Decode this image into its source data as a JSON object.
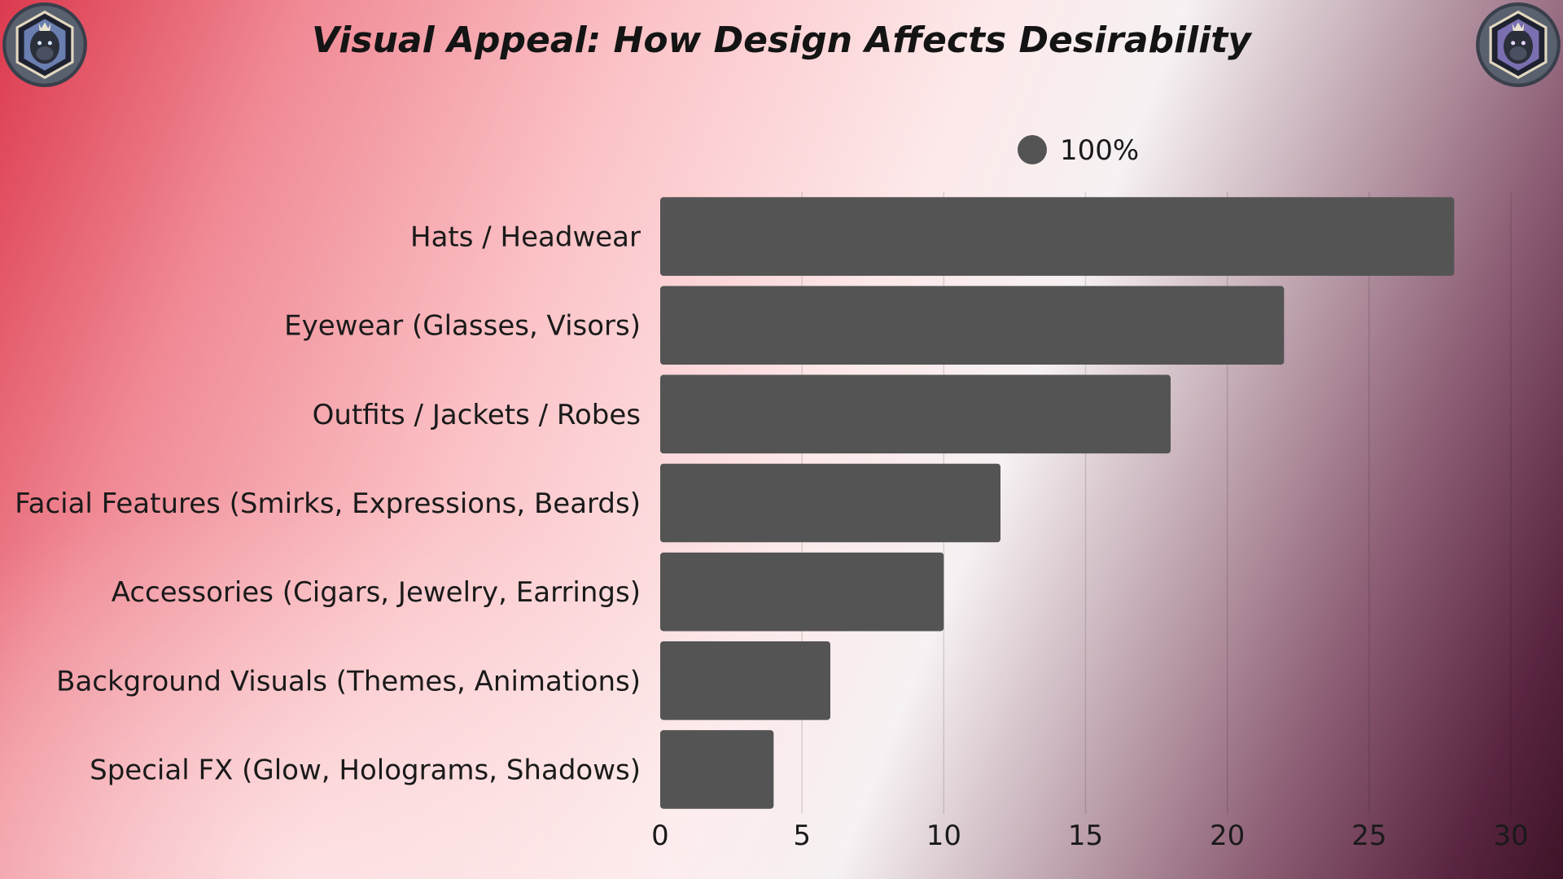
{
  "chart_data": {
    "type": "bar",
    "orientation": "horizontal",
    "title": "Visual Appeal: How Design Affects Desirability",
    "categories": [
      "Hats / Headwear",
      "Eyewear (Glasses, Visors)",
      "Outfits / Jackets / Robes",
      "Facial Features (Smirks, Expressions, Beards)",
      "Accessories (Cigars, Jewelry, Earrings)",
      "Background Visuals (Themes, Animations)",
      "Special FX (Glow, Holograms, Shadows)"
    ],
    "series": [
      {
        "name": "100%",
        "values": [
          28,
          22,
          18,
          12,
          10,
          6,
          4
        ]
      }
    ],
    "xlim": [
      0,
      30
    ],
    "xticks": [
      0,
      5,
      10,
      15,
      20,
      25,
      30
    ],
    "grid": true,
    "legend_position": "top"
  },
  "colors": {
    "bar": "#545454",
    "title": "#141414",
    "text": "#1a1a1a"
  },
  "icons": {
    "logo": "gorilla-crest-icon"
  }
}
